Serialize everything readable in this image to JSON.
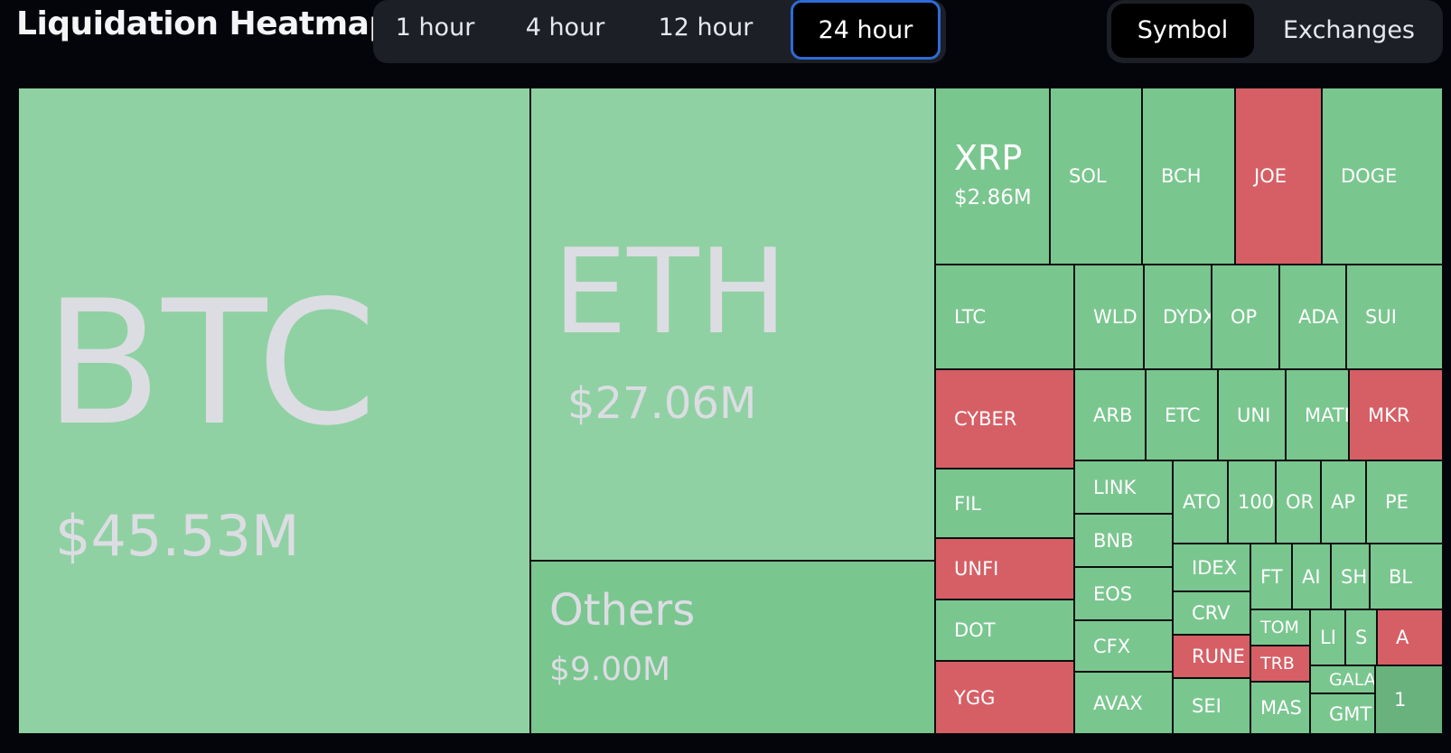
{
  "header": {
    "title": "Liquidation Heatmap",
    "time_ranges": [
      "1 hour",
      "4 hour",
      "12 hour",
      "24 hour"
    ],
    "selected_time_range": "24 hour",
    "group_by": [
      "Symbol",
      "Exchanges"
    ],
    "selected_group_by": "Symbol"
  },
  "colors": {
    "background": "#03050a",
    "panel": "#1c1f26",
    "active_outline": "#2f6bd8",
    "long_light": "#90d1a3",
    "long": "#7ac68f",
    "long_dark": "#69b27e",
    "short": "#d65f66",
    "big_label": "#dcdde3",
    "tile_label": "#ffffff"
  },
  "chart_data": {
    "type": "heatmap",
    "tiles": [
      {
        "symbol": "BTC",
        "value_label": "$45.53M",
        "value_musd": 45.53,
        "color": "long_light"
      },
      {
        "symbol": "ETH",
        "value_label": "$27.06M",
        "value_musd": 27.06,
        "color": "long_light"
      },
      {
        "symbol": "Others",
        "value_label": "$9.00M",
        "value_musd": 9.0,
        "color": "long"
      },
      {
        "symbol": "XRP",
        "value_label": "$2.86M",
        "value_musd": 2.86,
        "color": "long"
      },
      {
        "symbol": "SOL",
        "color": "long"
      },
      {
        "symbol": "BCH",
        "color": "long"
      },
      {
        "symbol": "JOE",
        "color": "short"
      },
      {
        "symbol": "DOGE",
        "color": "long"
      },
      {
        "symbol": "LTC",
        "color": "long"
      },
      {
        "symbol": "WLD",
        "color": "long"
      },
      {
        "symbol": "DYDX",
        "color": "long"
      },
      {
        "symbol": "OP",
        "color": "long"
      },
      {
        "symbol": "ADA",
        "color": "long"
      },
      {
        "symbol": "SUI",
        "color": "long"
      },
      {
        "symbol": "CYBER",
        "color": "short"
      },
      {
        "symbol": "ARB",
        "color": "long"
      },
      {
        "symbol": "ETC",
        "color": "long"
      },
      {
        "symbol": "UNI",
        "color": "long"
      },
      {
        "symbol": "MATI",
        "color": "long"
      },
      {
        "symbol": "MKR",
        "color": "short"
      },
      {
        "symbol": "FIL",
        "color": "long"
      },
      {
        "symbol": "LINK",
        "color": "long"
      },
      {
        "symbol": "ATO",
        "color": "long"
      },
      {
        "symbol": "100",
        "color": "long"
      },
      {
        "symbol": "OR",
        "color": "long"
      },
      {
        "symbol": "AP",
        "color": "long"
      },
      {
        "symbol": "PE",
        "color": "long"
      },
      {
        "symbol": "BNB",
        "color": "long"
      },
      {
        "symbol": "UNFI",
        "color": "short"
      },
      {
        "symbol": "IDEX",
        "color": "long"
      },
      {
        "symbol": "FT",
        "color": "long"
      },
      {
        "symbol": "AI",
        "color": "long"
      },
      {
        "symbol": "SH",
        "color": "long"
      },
      {
        "symbol": "BL",
        "color": "long"
      },
      {
        "symbol": "EOS",
        "color": "long"
      },
      {
        "symbol": "DOT",
        "color": "long"
      },
      {
        "symbol": "CRV",
        "color": "long"
      },
      {
        "symbol": "TOM",
        "color": "long"
      },
      {
        "symbol": "LI",
        "color": "long"
      },
      {
        "symbol": "S",
        "color": "long"
      },
      {
        "symbol": "A",
        "color": "short"
      },
      {
        "symbol": "CFX",
        "color": "long"
      },
      {
        "symbol": "RUNE",
        "color": "short"
      },
      {
        "symbol": "TRB",
        "color": "short"
      },
      {
        "symbol": "GALA",
        "color": "long"
      },
      {
        "symbol": "1",
        "color": "long_dark"
      },
      {
        "symbol": "YGG",
        "color": "short"
      },
      {
        "symbol": "AVAX",
        "color": "long"
      },
      {
        "symbol": "SEI",
        "color": "long"
      },
      {
        "symbol": "MAS",
        "color": "long"
      },
      {
        "symbol": "GMT",
        "color": "long"
      }
    ]
  }
}
